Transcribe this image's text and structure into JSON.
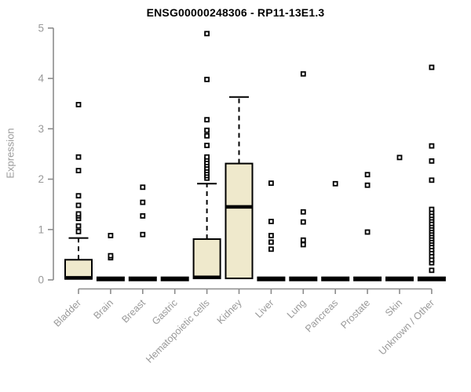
{
  "chart_data": {
    "type": "boxplot",
    "title": "ENSG00000248306 - RP11-13E1.3",
    "ylabel": "Expression",
    "xlabel": "",
    "ylim": [
      0,
      5
    ],
    "yticks": [
      0,
      1,
      2,
      3,
      4,
      5
    ],
    "grid": false,
    "legend": "none",
    "colors": {
      "box_fill": "#EFE9CC",
      "box_stroke": "#000000",
      "median": "#000000",
      "whisker": "#000000",
      "outlier_stroke": "#000000",
      "outlier_fill": "#ffffff",
      "axis": "#8c8c8c",
      "tick_label": "#999999",
      "title": "#000000"
    },
    "categories": [
      "Bladder",
      "Brain",
      "Breast",
      "Gastric",
      "Hematopoietic cells",
      "Kidney",
      "Liver",
      "Lung",
      "Pancreas",
      "Prostate",
      "Skin",
      "Unknown / Other"
    ],
    "boxes": [
      {
        "category": "Bladder",
        "collapsed": false,
        "q1": 0.02,
        "median": 0.04,
        "q3": 0.4,
        "whisker_low": 0.02,
        "whisker_high": 0.83,
        "outliers": [
          0.96,
          1.07,
          1.22,
          1.27,
          1.31,
          1.48,
          1.67,
          2.17,
          2.44,
          3.48
        ]
      },
      {
        "category": "Brain",
        "collapsed": true,
        "q1": 0,
        "median": 0.02,
        "q3": 0.05,
        "whisker_low": 0,
        "whisker_high": null,
        "outliers": [
          0.44,
          0.48,
          0.88
        ]
      },
      {
        "category": "Breast",
        "collapsed": true,
        "q1": 0,
        "median": 0.02,
        "q3": 0.05,
        "whisker_low": 0,
        "whisker_high": null,
        "outliers": [
          0.9,
          1.27,
          1.54,
          1.84
        ]
      },
      {
        "category": "Gastric",
        "collapsed": true,
        "q1": 0,
        "median": 0.02,
        "q3": 0.05,
        "whisker_low": 0,
        "whisker_high": null,
        "outliers": []
      },
      {
        "category": "Hematopoietic cells",
        "collapsed": false,
        "q1": 0.03,
        "median": 0.05,
        "q3": 0.81,
        "whisker_low": 0.03,
        "whisker_high": 1.91,
        "outliers": [
          2.02,
          2.07,
          2.12,
          2.17,
          2.22,
          2.28,
          2.33,
          2.39,
          2.44,
          2.67,
          2.86,
          2.97,
          3.18,
          3.98,
          4.89
        ]
      },
      {
        "category": "Kidney",
        "collapsed": false,
        "q1": 0.03,
        "median": 1.45,
        "q3": 2.31,
        "whisker_low": 0.03,
        "whisker_high": 3.63,
        "outliers": []
      },
      {
        "category": "Liver",
        "collapsed": true,
        "q1": 0,
        "median": 0.02,
        "q3": 0.05,
        "whisker_low": 0,
        "whisker_high": null,
        "outliers": [
          0.61,
          0.75,
          0.88,
          1.16,
          1.92
        ]
      },
      {
        "category": "Lung",
        "collapsed": true,
        "q1": 0,
        "median": 0.02,
        "q3": 0.05,
        "whisker_low": 0,
        "whisker_high": null,
        "outliers": [
          0.7,
          0.79,
          1.15,
          1.35,
          4.09
        ]
      },
      {
        "category": "Pancreas",
        "collapsed": true,
        "q1": 0,
        "median": 0.02,
        "q3": 0.05,
        "whisker_low": 0,
        "whisker_high": null,
        "outliers": [
          1.91
        ]
      },
      {
        "category": "Prostate",
        "collapsed": true,
        "q1": 0,
        "median": 0.02,
        "q3": 0.05,
        "whisker_low": 0,
        "whisker_high": null,
        "outliers": [
          0.95,
          1.88,
          2.09
        ]
      },
      {
        "category": "Skin",
        "collapsed": true,
        "q1": 0,
        "median": 0.02,
        "q3": 0.05,
        "whisker_low": 0,
        "whisker_high": null,
        "outliers": [
          2.43
        ]
      },
      {
        "category": "Unknown / Other",
        "collapsed": true,
        "q1": 0,
        "median": 0.02,
        "q3": 0.05,
        "whisker_low": 0,
        "whisker_high": null,
        "outliers": [
          0.19,
          0.34,
          0.4,
          0.47,
          0.54,
          0.6,
          0.66,
          0.72,
          0.77,
          0.82,
          0.87,
          0.92,
          0.97,
          1.02,
          1.07,
          1.12,
          1.18,
          1.23,
          1.28,
          1.34,
          1.4,
          1.98,
          2.36,
          2.66,
          4.22
        ]
      }
    ]
  }
}
